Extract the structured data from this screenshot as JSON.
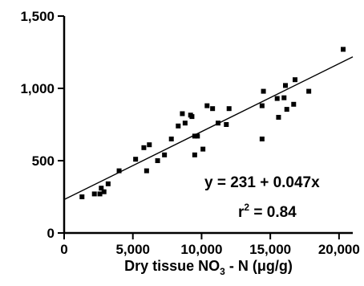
{
  "chart_data": {
    "type": "scatter",
    "title": "",
    "xlabel": "Dry tissue NO₃ - N (μg/g)",
    "xlabel_parts": {
      "pre": "Dry tissue NO",
      "sub": "3",
      "post": " - N (μg/g)"
    },
    "ylabel": "",
    "xlim": [
      0,
      21000
    ],
    "ylim": [
      0,
      1500
    ],
    "xticks": [
      0,
      5000,
      10000,
      15000,
      20000
    ],
    "xtick_labels": [
      "0",
      "5,000",
      "10,000",
      "15,000",
      "20,000"
    ],
    "yticks": [
      0,
      500,
      1000,
      1500
    ],
    "ytick_labels": [
      "0",
      "500",
      "1,000",
      "1,500"
    ],
    "grid": false,
    "fit_line": {
      "intercept": 231,
      "slope": 0.047
    },
    "annotations": {
      "equation": "y = 231 + 0.047x",
      "r2_label": "r",
      "r2_sup": "2",
      "r2_value": " = 0.84"
    },
    "points": [
      {
        "x": 1300,
        "y": 250
      },
      {
        "x": 2200,
        "y": 270
      },
      {
        "x": 2600,
        "y": 270
      },
      {
        "x": 2700,
        "y": 310
      },
      {
        "x": 2900,
        "y": 285
      },
      {
        "x": 3200,
        "y": 340
      },
      {
        "x": 4000,
        "y": 430
      },
      {
        "x": 5200,
        "y": 510
      },
      {
        "x": 5800,
        "y": 590
      },
      {
        "x": 6000,
        "y": 430
      },
      {
        "x": 6200,
        "y": 610
      },
      {
        "x": 6800,
        "y": 500
      },
      {
        "x": 7300,
        "y": 540
      },
      {
        "x": 7800,
        "y": 650
      },
      {
        "x": 8300,
        "y": 740
      },
      {
        "x": 8600,
        "y": 825
      },
      {
        "x": 8800,
        "y": 760
      },
      {
        "x": 9200,
        "y": 815
      },
      {
        "x": 9300,
        "y": 805
      },
      {
        "x": 9500,
        "y": 670
      },
      {
        "x": 9500,
        "y": 540
      },
      {
        "x": 9700,
        "y": 670
      },
      {
        "x": 10100,
        "y": 580
      },
      {
        "x": 10400,
        "y": 880
      },
      {
        "x": 10800,
        "y": 860
      },
      {
        "x": 11200,
        "y": 760
      },
      {
        "x": 11800,
        "y": 750
      },
      {
        "x": 12000,
        "y": 860
      },
      {
        "x": 14400,
        "y": 650
      },
      {
        "x": 14400,
        "y": 880
      },
      {
        "x": 14500,
        "y": 980
      },
      {
        "x": 15500,
        "y": 930
      },
      {
        "x": 15600,
        "y": 800
      },
      {
        "x": 16000,
        "y": 935
      },
      {
        "x": 16100,
        "y": 1020
      },
      {
        "x": 16200,
        "y": 855
      },
      {
        "x": 16700,
        "y": 890
      },
      {
        "x": 16800,
        "y": 1060
      },
      {
        "x": 17800,
        "y": 980
      },
      {
        "x": 20300,
        "y": 1270
      }
    ]
  }
}
